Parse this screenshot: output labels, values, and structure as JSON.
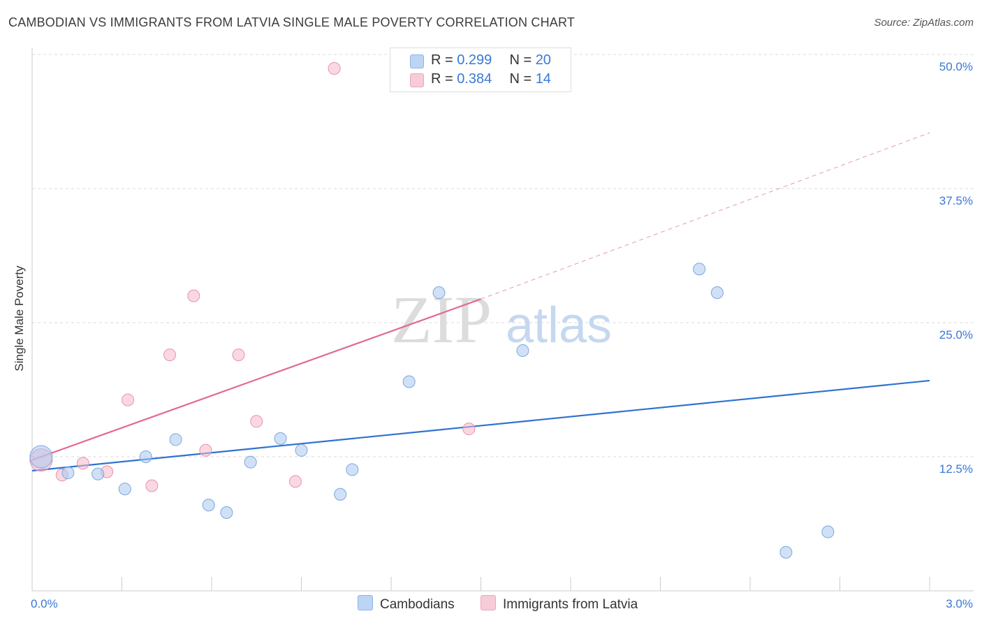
{
  "title": "CAMBODIAN VS IMMIGRANTS FROM LATVIA SINGLE MALE POVERTY CORRELATION CHART",
  "source": "Source: ZipAtlas.com",
  "watermark": {
    "zip": "ZIP",
    "atlas": "atlas"
  },
  "legend": {
    "r_label": "R =",
    "n_label": "N =",
    "series": [
      {
        "name": "Cambodians",
        "r": "0.299",
        "n": "20",
        "color": "#a9c8f0"
      },
      {
        "name": "Immigrants from Latvia",
        "r": "0.384",
        "n": "14",
        "color": "#f5b8cb"
      }
    ]
  },
  "chart_data": {
    "type": "scatter",
    "title": "CAMBODIAN VS IMMIGRANTS FROM LATVIA SINGLE MALE POVERTY CORRELATION CHART",
    "xlabel": "",
    "ylabel": "Single Male Poverty",
    "xlim": [
      0,
      3.0
    ],
    "ylim": [
      0,
      52.0
    ],
    "x_tick_labels": [
      "0.0%",
      "3.0%"
    ],
    "y_ticks": [
      12.5,
      25.0,
      37.5,
      50.0
    ],
    "y_tick_labels": [
      "12.5%",
      "25.0%",
      "37.5%",
      "50.0%"
    ],
    "grid": "horizontal dashed",
    "legend_position": "top-center",
    "series": [
      {
        "name": "Cambodians",
        "color": "#a9c8f0",
        "edge": "#7aa7dc",
        "line_color": "#2f72d0",
        "points": [
          {
            "x": 0.03,
            "y": 12.5,
            "big": true
          },
          {
            "x": 0.12,
            "y": 11.0
          },
          {
            "x": 0.22,
            "y": 10.9
          },
          {
            "x": 0.31,
            "y": 9.5
          },
          {
            "x": 0.38,
            "y": 12.5
          },
          {
            "x": 0.48,
            "y": 14.1
          },
          {
            "x": 0.59,
            "y": 8.0
          },
          {
            "x": 0.65,
            "y": 7.3
          },
          {
            "x": 0.73,
            "y": 12.0
          },
          {
            "x": 0.83,
            "y": 14.2
          },
          {
            "x": 0.9,
            "y": 13.1
          },
          {
            "x": 1.03,
            "y": 9.0
          },
          {
            "x": 1.07,
            "y": 11.3
          },
          {
            "x": 1.26,
            "y": 19.5
          },
          {
            "x": 1.36,
            "y": 27.8
          },
          {
            "x": 1.64,
            "y": 22.4
          },
          {
            "x": 2.23,
            "y": 30.0
          },
          {
            "x": 2.29,
            "y": 27.8
          },
          {
            "x": 2.52,
            "y": 3.6
          },
          {
            "x": 2.66,
            "y": 5.5
          }
        ],
        "trend": {
          "x": [
            0.0,
            3.0
          ],
          "y": [
            11.2,
            19.6
          ]
        }
      },
      {
        "name": "Immigrants from Latvia",
        "color": "#f5b8cb",
        "edge": "#e791ad",
        "line_color": "#e06a92",
        "points": [
          {
            "x": 0.03,
            "y": 12.2,
            "big": true
          },
          {
            "x": 0.1,
            "y": 10.8
          },
          {
            "x": 0.17,
            "y": 11.9
          },
          {
            "x": 0.25,
            "y": 11.1
          },
          {
            "x": 0.32,
            "y": 17.8
          },
          {
            "x": 0.4,
            "y": 9.8
          },
          {
            "x": 0.46,
            "y": 22.0
          },
          {
            "x": 0.54,
            "y": 27.5
          },
          {
            "x": 0.58,
            "y": 13.1
          },
          {
            "x": 0.69,
            "y": 22.0
          },
          {
            "x": 0.75,
            "y": 15.8
          },
          {
            "x": 0.88,
            "y": 10.2
          },
          {
            "x": 1.01,
            "y": 48.7
          },
          {
            "x": 1.46,
            "y": 15.1
          }
        ],
        "trend": {
          "x": [
            0.0,
            1.5
          ],
          "y": [
            12.2,
            27.2
          ]
        },
        "trend_extension": {
          "x": [
            1.5,
            3.0
          ],
          "y": [
            27.2,
            42.7
          ]
        }
      }
    ]
  }
}
